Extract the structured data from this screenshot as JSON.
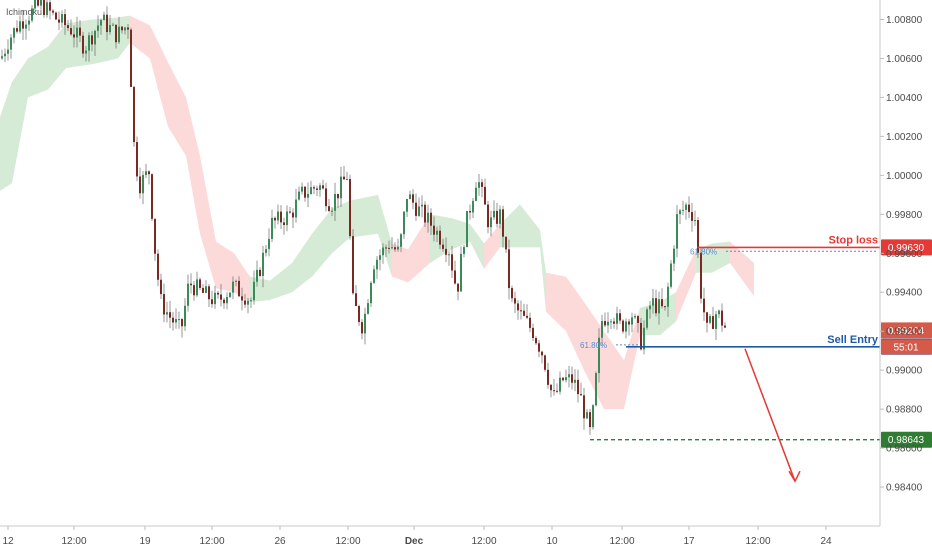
{
  "indicator_label": "Ichimoku",
  "chart_data": {
    "type": "candlestick",
    "price_axis": {
      "min": 0.982,
      "max": 1.009,
      "ticks": [
        "1.00800",
        "1.00600",
        "1.00400",
        "1.00200",
        "1.00000",
        "0.99800",
        "0.99600",
        "0.99400",
        "0.99200",
        "0.99000",
        "0.98800",
        "0.98600",
        "0.98400"
      ],
      "tick_values": [
        1.008,
        1.006,
        1.004,
        1.002,
        1.0,
        0.998,
        0.996,
        0.994,
        0.992,
        0.99,
        0.988,
        0.986,
        0.984
      ]
    },
    "time_axis": {
      "labels": [
        "12",
        "12:00",
        "19",
        "12:00",
        "26",
        "12:00",
        "Dec",
        "12:00",
        "10",
        "12:00",
        "17",
        "12:00",
        "24"
      ],
      "bold_labels": [
        "Dec"
      ]
    },
    "levels": [
      {
        "id": "stop-loss",
        "label": "Stop loss",
        "value": 0.9963,
        "value_label": "0.99630",
        "color": "#e53935",
        "style": "solid"
      },
      {
        "id": "sell-entry",
        "label": "Sell Entry",
        "value": 0.9912,
        "value_label": "0.99120",
        "color": "#1e5aa8",
        "style": "solid"
      },
      {
        "id": "take-profit",
        "label": "",
        "value": 0.98643,
        "value_label": "0.98643",
        "color": "#2e7d32",
        "style": "dashed"
      }
    ],
    "fib_levels": [
      {
        "label": "61.80%",
        "value": 0.9961
      },
      {
        "label": "61.80%",
        "value": 0.9913
      }
    ],
    "current_price": {
      "value": 0.99204,
      "value_label": "0.99204",
      "countdown": "55:01",
      "color": "#d45a4a"
    },
    "projection_arrow": {
      "from": 0.9912,
      "to": 0.9843
    }
  }
}
